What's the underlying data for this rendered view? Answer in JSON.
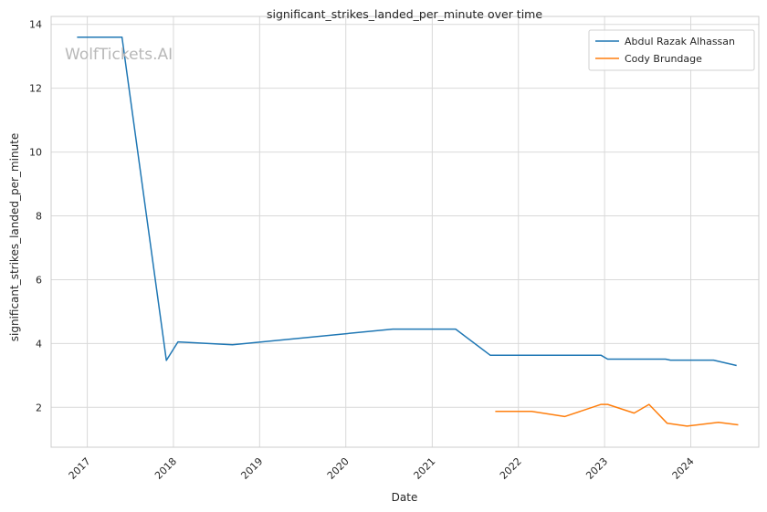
{
  "watermark": "WolfTickets.AI",
  "chart_data": {
    "type": "line",
    "title": "significant_strikes_landed_per_minute over time",
    "xlabel": "Date",
    "ylabel": "significant_strikes_landed_per_minute",
    "x_type": "date",
    "xlim": [
      "2016-08-01",
      "2024-10-15"
    ],
    "ylim": [
      0.75,
      14.25
    ],
    "x_ticks": [
      "2017-01-01",
      "2018-01-01",
      "2019-01-01",
      "2020-01-01",
      "2021-01-01",
      "2022-01-01",
      "2023-01-01",
      "2024-01-01"
    ],
    "x_tick_labels": [
      "2017",
      "2018",
      "2019",
      "2020",
      "2021",
      "2022",
      "2023",
      "2024"
    ],
    "y_ticks": [
      2,
      4,
      6,
      8,
      10,
      12,
      14
    ],
    "grid": true,
    "legend_position": "top-right",
    "series": [
      {
        "name": "Abdul Razak Alhassan",
        "color": "#1f77b4",
        "points": [
          {
            "x": "2016-11-19",
            "y": 13.6
          },
          {
            "x": "2017-05-28",
            "y": 13.6
          },
          {
            "x": "2017-12-02",
            "y": 3.47
          },
          {
            "x": "2018-01-20",
            "y": 4.05
          },
          {
            "x": "2018-09-08",
            "y": 3.96
          },
          {
            "x": "2020-07-18",
            "y": 4.45
          },
          {
            "x": "2021-04-10",
            "y": 4.45
          },
          {
            "x": "2021-09-04",
            "y": 3.63
          },
          {
            "x": "2022-12-17",
            "y": 3.63
          },
          {
            "x": "2023-01-14",
            "y": 3.51
          },
          {
            "x": "2023-09-16",
            "y": 3.51
          },
          {
            "x": "2023-10-07",
            "y": 3.48
          },
          {
            "x": "2024-04-06",
            "y": 3.48
          },
          {
            "x": "2024-07-13",
            "y": 3.31
          }
        ]
      },
      {
        "name": "Cody Brundage",
        "color": "#ff7f0e",
        "points": [
          {
            "x": "2021-09-25",
            "y": 1.87
          },
          {
            "x": "2022-02-26",
            "y": 1.87
          },
          {
            "x": "2022-07-16",
            "y": 1.71
          },
          {
            "x": "2022-12-17",
            "y": 2.09
          },
          {
            "x": "2023-01-14",
            "y": 2.09
          },
          {
            "x": "2023-05-06",
            "y": 1.82
          },
          {
            "x": "2023-07-08",
            "y": 2.09
          },
          {
            "x": "2023-09-23",
            "y": 1.5
          },
          {
            "x": "2023-12-16",
            "y": 1.41
          },
          {
            "x": "2024-04-27",
            "y": 1.53
          },
          {
            "x": "2024-07-20",
            "y": 1.45
          }
        ]
      }
    ]
  }
}
